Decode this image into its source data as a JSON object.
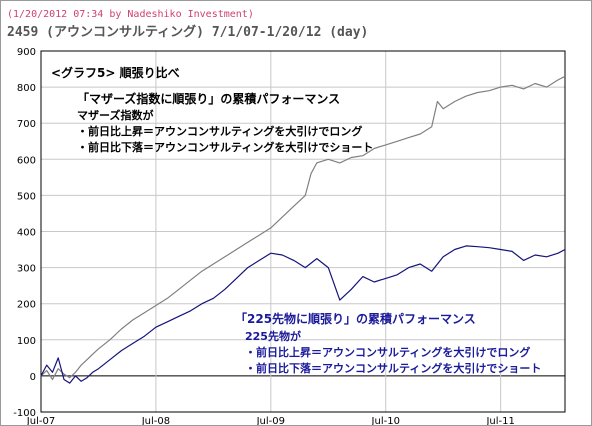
{
  "header": {
    "timestamp": "(1/20/2012 07:34 by Nadeshiko Investment)",
    "title": "2459 (アウンコンサルティング) 7/1/07-1/20/12 (day)"
  },
  "annotations": {
    "chart_label": "<グラフ5> 順張り比べ",
    "mothers_title": "「マザーズ指数に順張り」の累積パフォーマンス",
    "mothers_lines": [
      "マザーズ指数が",
      "・前日比上昇＝アウンコンサルティングを大引けでロング",
      "・前日比下落＝アウンコンサルティングを大引けでショート"
    ],
    "n225_title": "「225先物に順張り」の累積パフォーマンス",
    "n225_lines": [
      "225先物が",
      "・前日比上昇＝アウンコンサルティングを大引けでロング",
      "・前日比下落＝アウンコンサルティングを大引けでショート"
    ]
  },
  "colors": {
    "mothers_line": "#808080",
    "n225_line": "#14147a",
    "grid": "#c8c8c8",
    "zero_line": "#000000"
  },
  "chart_data": {
    "type": "line",
    "ylim": [
      -100,
      900
    ],
    "yticks": [
      -100,
      0,
      100,
      200,
      300,
      400,
      500,
      600,
      700,
      800,
      900
    ],
    "xticks": [
      "Jul-07",
      "Jul-08",
      "Jul-09",
      "Jul-10",
      "Jul-11"
    ],
    "xlim": [
      0,
      4.56
    ],
    "grid": true,
    "series": [
      {
        "key": "mothers",
        "x": [
          0,
          0.05,
          0.1,
          0.15,
          0.2,
          0.25,
          0.3,
          0.35,
          0.4,
          0.45,
          0.5,
          0.6,
          0.7,
          0.8,
          0.9,
          1.0,
          1.1,
          1.2,
          1.3,
          1.4,
          1.5,
          1.6,
          1.7,
          1.8,
          1.9,
          2.0,
          2.1,
          2.2,
          2.3,
          2.35,
          2.4,
          2.45,
          2.5,
          2.6,
          2.7,
          2.8,
          2.9,
          3.0,
          3.1,
          3.2,
          3.3,
          3.4,
          3.45,
          3.5,
          3.6,
          3.7,
          3.8,
          3.9,
          4.0,
          4.1,
          4.2,
          4.3,
          4.4,
          4.5,
          4.56
        ],
        "y": [
          0,
          15,
          -10,
          20,
          5,
          -5,
          10,
          30,
          45,
          60,
          75,
          100,
          130,
          155,
          175,
          195,
          215,
          240,
          265,
          290,
          310,
          330,
          350,
          370,
          390,
          410,
          440,
          470,
          500,
          560,
          590,
          595,
          600,
          590,
          605,
          610,
          630,
          640,
          650,
          660,
          670,
          690,
          760,
          740,
          760,
          775,
          785,
          790,
          800,
          805,
          795,
          810,
          800,
          820,
          830
        ]
      },
      {
        "key": "n225",
        "x": [
          0,
          0.05,
          0.1,
          0.15,
          0.2,
          0.25,
          0.3,
          0.35,
          0.4,
          0.45,
          0.5,
          0.6,
          0.7,
          0.8,
          0.9,
          1.0,
          1.1,
          1.2,
          1.3,
          1.4,
          1.5,
          1.6,
          1.7,
          1.8,
          1.9,
          2.0,
          2.1,
          2.2,
          2.3,
          2.4,
          2.5,
          2.6,
          2.7,
          2.8,
          2.9,
          3.0,
          3.1,
          3.2,
          3.3,
          3.4,
          3.5,
          3.6,
          3.7,
          3.8,
          3.9,
          4.0,
          4.1,
          4.2,
          4.3,
          4.4,
          4.5,
          4.56
        ],
        "y": [
          0,
          30,
          10,
          50,
          -10,
          -20,
          0,
          -15,
          -5,
          10,
          20,
          45,
          70,
          90,
          110,
          135,
          150,
          165,
          180,
          200,
          215,
          240,
          270,
          300,
          320,
          340,
          335,
          320,
          300,
          325,
          300,
          210,
          240,
          275,
          260,
          270,
          280,
          300,
          310,
          290,
          330,
          350,
          360,
          358,
          355,
          350,
          345,
          320,
          335,
          330,
          340,
          350
        ]
      }
    ]
  }
}
